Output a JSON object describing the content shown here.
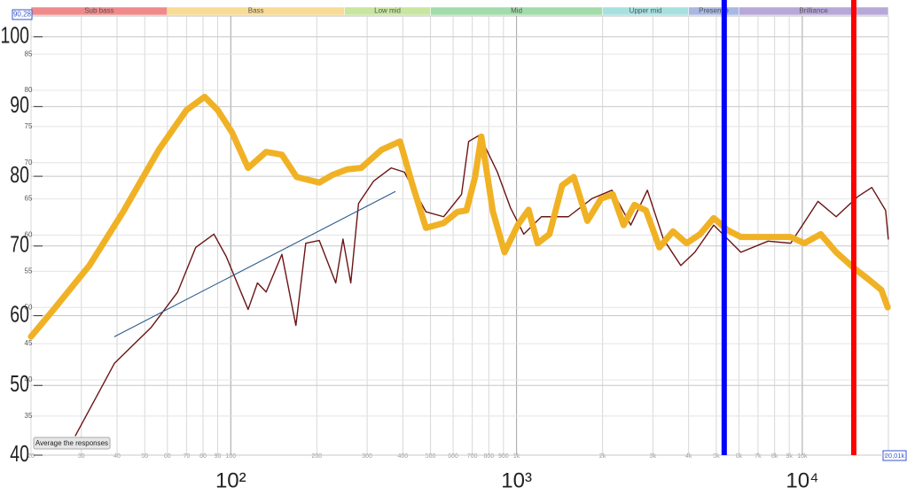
{
  "chart_data": {
    "type": "line",
    "xscale": "log",
    "xlim": [
      20,
      20010
    ],
    "ylim": [
      40,
      103
    ],
    "yticks": [
      40,
      50,
      60,
      70,
      80,
      90,
      100
    ],
    "y2lim": [
      29.6,
      90.28
    ],
    "y2ticks": [
      35,
      40,
      45,
      50,
      55,
      60,
      65,
      70,
      75,
      80,
      85,
      {
        "value": 90.28,
        "label": "90,28"
      }
    ],
    "xticks": [
      20,
      30,
      40,
      50,
      60,
      70,
      80,
      90,
      100,
      200,
      300,
      400,
      500,
      600,
      700,
      800,
      900,
      {
        "value": 1000,
        "label": "1k"
      },
      {
        "value": 2000,
        "label": "2k"
      },
      {
        "value": 3000,
        "label": "3k"
      },
      {
        "value": 4000,
        "label": "4k"
      },
      {
        "value": 5000,
        "label": "5k"
      },
      {
        "value": 6000,
        "label": "6k"
      },
      {
        "value": 7000,
        "label": "7k"
      },
      {
        "value": 8000,
        "label": "8k"
      },
      {
        "value": 9000,
        "label": "9k"
      },
      {
        "value": 10000,
        "label": "10k"
      },
      {
        "value": 20000,
        "label": "20k"
      },
      {
        "value": 20010,
        "label": "20,01k"
      }
    ],
    "major_xticks": [
      {
        "value": 100,
        "label": "10²"
      },
      {
        "value": 1000,
        "label": "10³"
      },
      {
        "value": 10000,
        "label": "10⁴"
      }
    ],
    "grid": true,
    "bands": [
      {
        "name": "Sub bass",
        "from": 20,
        "to": 60,
        "color": "#f08a8a"
      },
      {
        "name": "Bass",
        "from": 60,
        "to": 250,
        "color": "#f8dc96"
      },
      {
        "name": "Low mid",
        "from": 250,
        "to": 500,
        "color": "#c8e6a0"
      },
      {
        "name": "Mid",
        "from": 500,
        "to": 2000,
        "color": "#a2dcaa"
      },
      {
        "name": "Upper mid",
        "from": 2000,
        "to": 4000,
        "color": "#a8e0e0"
      },
      {
        "name": "Presence",
        "from": 4000,
        "to": 6000,
        "color": "#a8b8e2"
      },
      {
        "name": "Brilliance",
        "from": 6000,
        "to": 20000,
        "color": "#b8a8d8"
      }
    ],
    "series": [
      {
        "color": "#6b1414",
        "width": 1.4,
        "x": [
          28.6,
          39.2,
          52.6,
          65.2,
          75.4,
          87.3,
          96.4,
          115,
          124,
          133,
          151,
          169,
          183,
          204,
          233,
          247,
          263,
          280,
          316,
          364,
          405,
          482,
          556,
          642,
          680,
          742,
          857,
          952,
          1060,
          1222,
          1519,
          1836,
          2157,
          2510,
          2870,
          3265,
          3757,
          4205,
          4897,
          6097,
          7590,
          9107,
          11350,
          13140,
          15660,
          17510,
          19570,
          20000
        ],
        "values": [
          42.8,
          53.2,
          58.3,
          63.4,
          69.8,
          71.7,
          68.5,
          60.9,
          64.7,
          63.4,
          68.8,
          58.6,
          70.4,
          70.8,
          64.7,
          71.0,
          64.7,
          76.1,
          79.3,
          81.2,
          80.6,
          74.9,
          74.2,
          77.4,
          85.0,
          85.9,
          80.6,
          75.5,
          71.7,
          74.2,
          74.2,
          76.8,
          78.0,
          73.0,
          78.0,
          71.0,
          67.2,
          69.1,
          73.0,
          69.1,
          70.7,
          70.4,
          76.4,
          74.2,
          77.1,
          78.4,
          75.1,
          71.0
        ]
      },
      {
        "color": "#f0b224",
        "width": 7,
        "x": [
          20,
          24,
          32,
          42,
          56,
          70,
          81,
          90,
          101,
          115,
          133,
          151,
          170,
          204,
          227,
          256,
          286,
          337,
          391,
          433,
          482,
          556,
          621,
          668,
          716,
          753,
          827,
          908,
          1010,
          1102,
          1185,
          1304,
          1444,
          1586,
          1770,
          1977,
          2172,
          2370,
          2586,
          2837,
          3162,
          3528,
          3936,
          4390,
          4897,
          5464,
          6097,
          7590,
          9107,
          10160,
          11600,
          13140,
          15200,
          16950,
          18910,
          19900
        ],
        "values": [
          57.0,
          60.9,
          67.2,
          74.9,
          83.8,
          89.5,
          91.4,
          89.5,
          86.3,
          81.2,
          83.5,
          83.1,
          79.9,
          79.1,
          80.2,
          81.0,
          81.2,
          83.8,
          85.0,
          78.7,
          72.6,
          73.3,
          74.9,
          75.1,
          79.9,
          85.7,
          74.9,
          69.1,
          73.0,
          75.2,
          70.4,
          71.7,
          78.7,
          79.9,
          73.6,
          76.8,
          77.4,
          73.0,
          75.9,
          75.1,
          69.8,
          72.1,
          70.4,
          71.7,
          74.0,
          72.3,
          71.3,
          71.3,
          71.3,
          70.4,
          71.7,
          69.1,
          66.8,
          65.3,
          63.7,
          61.2
        ]
      },
      {
        "color": "#2b5b8c",
        "width": 1.1,
        "x": [
          39.2,
          376
        ],
        "values": [
          57.0,
          77.8
        ]
      }
    ],
    "markers": [
      {
        "x": 5330,
        "color": "#0000ff"
      },
      {
        "x": 15140,
        "color": "#ff0000"
      }
    ],
    "button": "Average the responses"
  }
}
